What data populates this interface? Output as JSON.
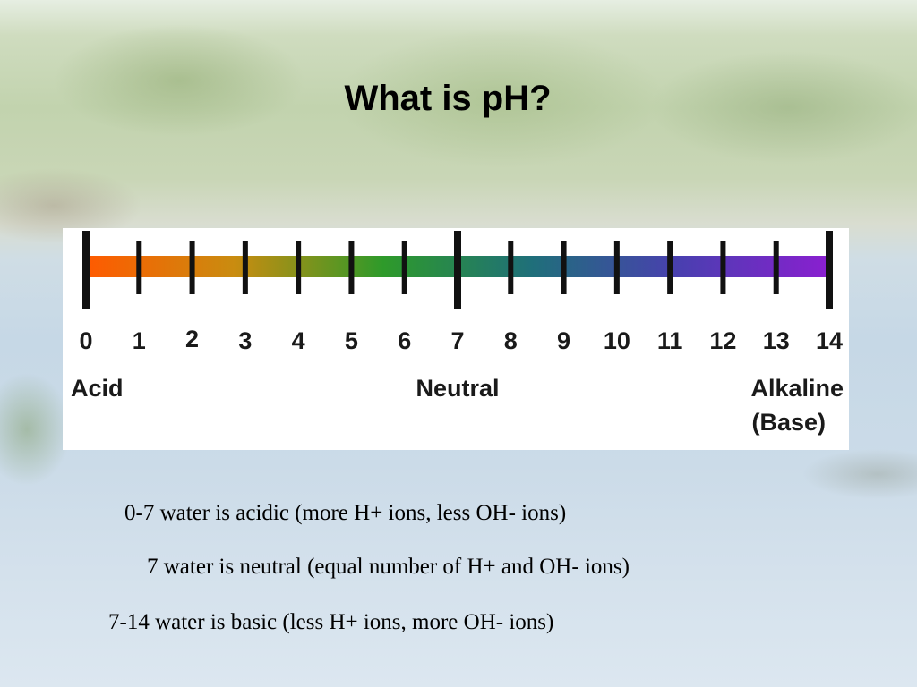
{
  "slide": {
    "title": "What is pH?",
    "notes": [
      "0-7 water is acidic (more H+ ions, less OH- ions)",
      "7 water is neutral (equal number of H+ and OH- ions)",
      "7-14 water is basic (less H+ ions, more OH- ions)"
    ]
  },
  "colors": {
    "scale_gradient": [
      "#ff5a00",
      "#c98c10",
      "#2e9a2a",
      "#1f6f7a",
      "#4a3fb0",
      "#8a1fd0"
    ],
    "tick": "#111111"
  },
  "scale": {
    "min": 0,
    "max": 14,
    "ticks": [
      "0",
      "1",
      "2",
      "3",
      "4",
      "5",
      "6",
      "7",
      "8",
      "9",
      "10",
      "11",
      "12",
      "13",
      "14"
    ],
    "major_ticks": [
      0,
      7,
      14
    ],
    "labels": [
      {
        "value": 0,
        "lines": [
          "Acid"
        ]
      },
      {
        "value": 7,
        "lines": [
          "Neutral"
        ]
      },
      {
        "value": 14,
        "lines": [
          "Alkaline",
          "(Base)"
        ]
      }
    ]
  }
}
